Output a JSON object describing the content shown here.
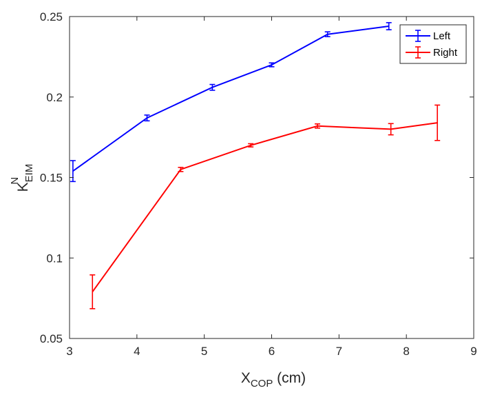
{
  "chart_data": {
    "type": "line",
    "title": "",
    "xlabel": {
      "main": "X",
      "sub": "COP",
      "suffix": " (cm)"
    },
    "ylabel": {
      "main": "K",
      "sub": "EIM",
      "sup": "N"
    },
    "xlim": [
      3,
      9
    ],
    "ylim": [
      0.05,
      0.25
    ],
    "xticks": [
      3,
      4,
      5,
      6,
      7,
      8,
      9
    ],
    "yticks": [
      0.05,
      0.1,
      0.15,
      0.2,
      0.25
    ],
    "xtick_labels": [
      "3",
      "4",
      "5",
      "6",
      "7",
      "8",
      "9"
    ],
    "ytick_labels": [
      "0.05",
      "0.1",
      "0.15",
      "0.2",
      "0.25"
    ],
    "grid": false,
    "legend_position": "top-right",
    "series": [
      {
        "name": "Left",
        "color": "#0000ff",
        "x": [
          3.05,
          4.15,
          5.12,
          6.0,
          6.83,
          7.74
        ],
        "y": [
          0.154,
          0.187,
          0.206,
          0.22,
          0.239,
          0.244
        ],
        "err": [
          0.0065,
          0.0018,
          0.0018,
          0.0012,
          0.0015,
          0.0022
        ]
      },
      {
        "name": "Right",
        "color": "#ff0000",
        "x": [
          3.34,
          4.65,
          5.69,
          6.68,
          7.77,
          8.46
        ],
        "y": [
          0.079,
          0.155,
          0.17,
          0.182,
          0.18,
          0.184
        ],
        "err": [
          0.0105,
          0.0013,
          0.001,
          0.0013,
          0.0035,
          0.011
        ]
      }
    ]
  }
}
